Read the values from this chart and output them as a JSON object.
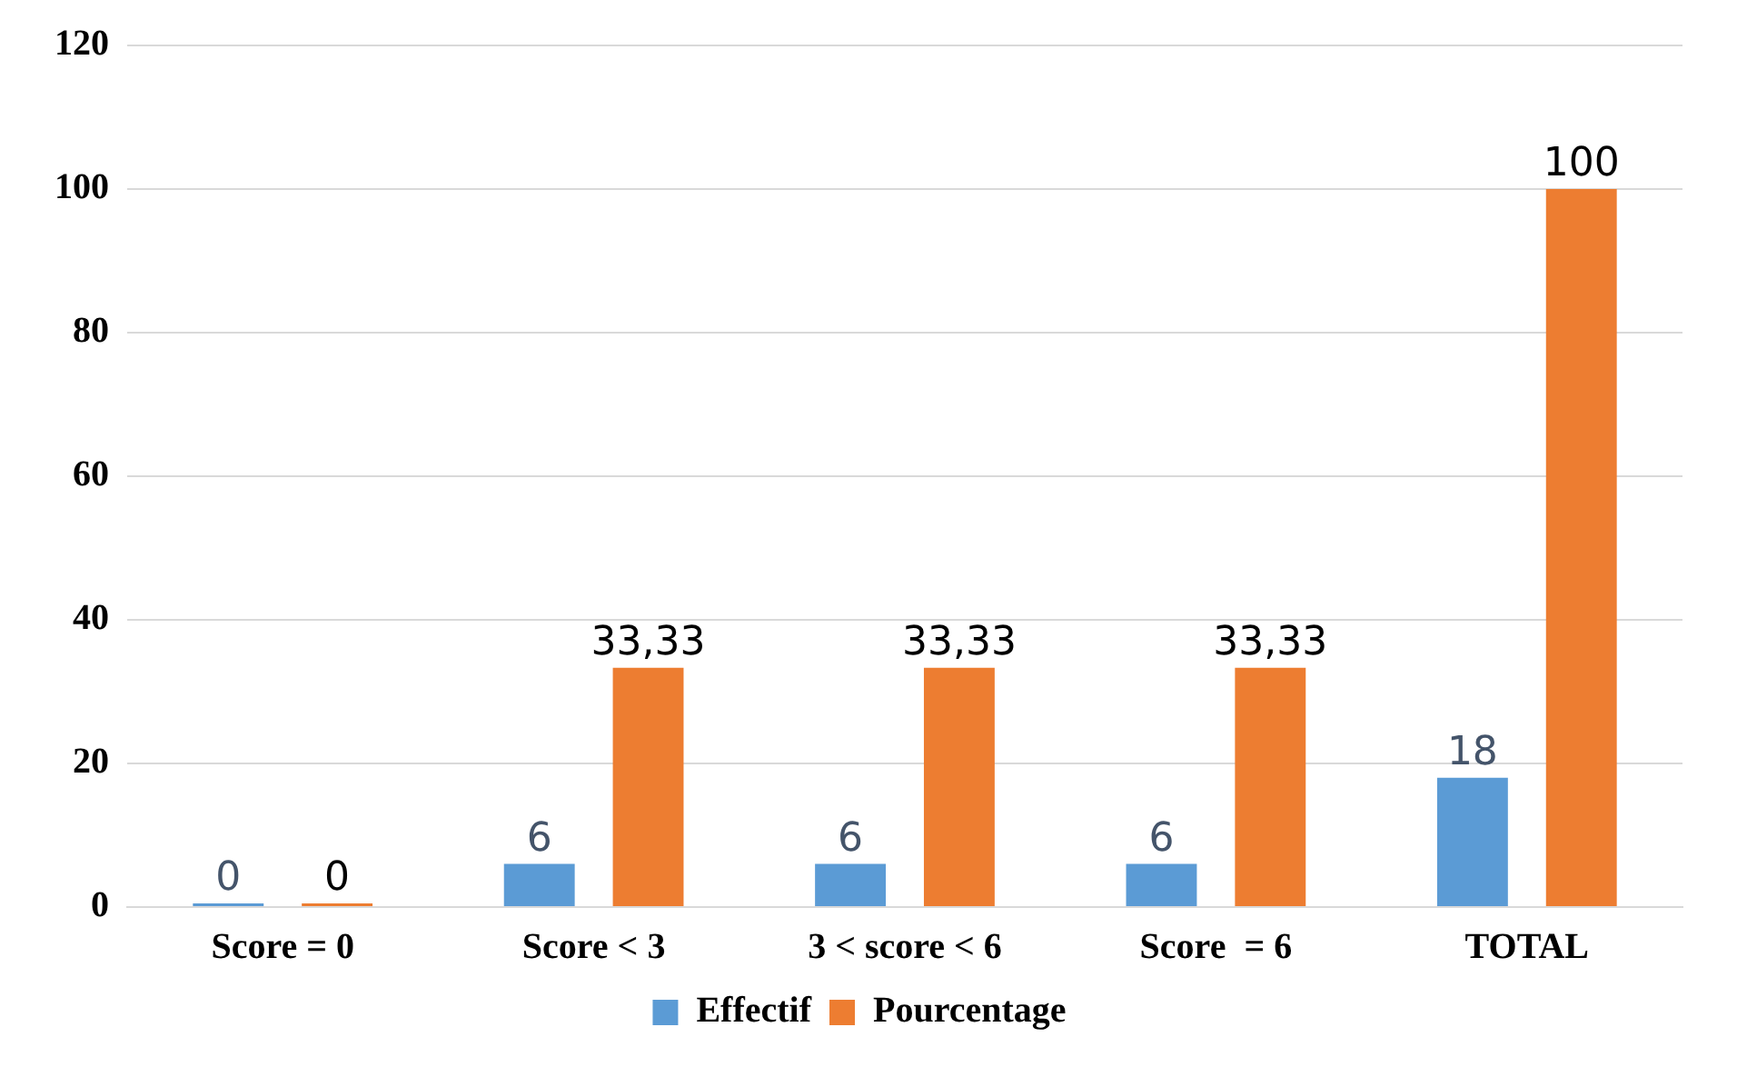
{
  "chart_data": {
    "type": "bar",
    "categories": [
      "Score = 0",
      "Score < 3",
      "3 < score < 6",
      "Score  = 6",
      "TOTAL"
    ],
    "series": [
      {
        "name": "Effectif",
        "color": "#5b9bd5",
        "values": [
          0,
          6,
          6,
          6,
          18
        ],
        "value_labels": [
          "0",
          "6",
          "6",
          "6",
          "18"
        ]
      },
      {
        "name": "Pourcentage",
        "color": "#ed7d31",
        "values": [
          0,
          33.33,
          33.33,
          33.33,
          100
        ],
        "value_labels": [
          "0",
          "33,33",
          "33,33",
          "33,33",
          "100"
        ]
      }
    ],
    "ylim": [
      0,
      120
    ],
    "yticks": [
      0,
      20,
      40,
      60,
      80,
      100,
      120
    ],
    "grid": "y",
    "legend": "bottom"
  }
}
